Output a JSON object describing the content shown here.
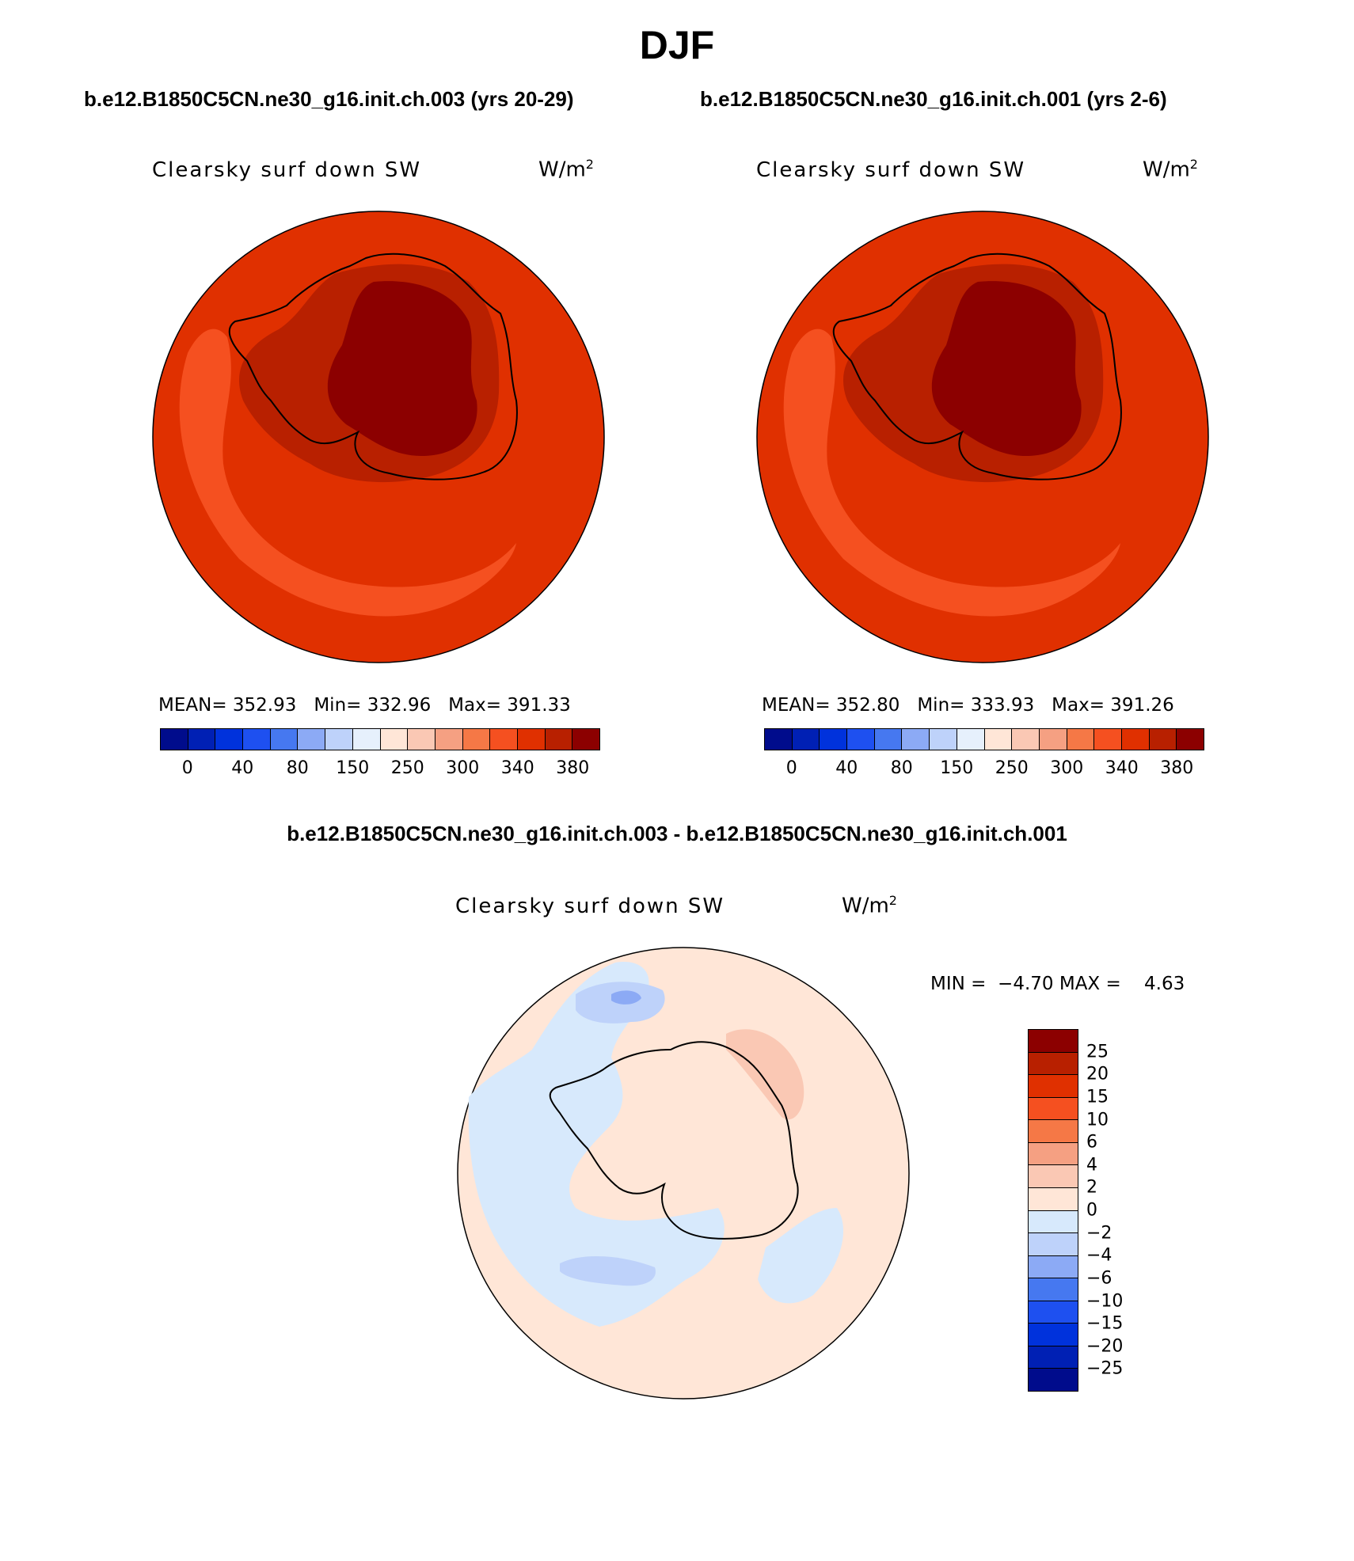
{
  "main_title": "DJF",
  "case_left_title": "b.e12.B1850C5CN.ne30_g16.init.ch.003 (yrs 20-29)",
  "case_right_title": "b.e12.B1850C5CN.ne30_g16.init.ch.001 (yrs 2-6)",
  "diff_title": "b.e12.B1850C5CN.ne30_g16.init.ch.003 - b.e12.B1850C5CN.ne30_g16.init.ch.001",
  "variable": "Clearsky surf down SW",
  "unit_base": "W/m",
  "unit_exp": "2",
  "panel_left": {
    "mean_label": "MEAN=",
    "mean": "352.93",
    "min_label": "Min=",
    "min": "332.96",
    "max_label": "Max=",
    "max": "391.33"
  },
  "panel_right": {
    "mean_label": "MEAN=",
    "mean": "352.80",
    "min_label": "Min=",
    "min": "333.93",
    "max_label": "Max=",
    "max": "391.26"
  },
  "panel_diff": {
    "min_label": "MIN =",
    "min": "−4.70",
    "max_label": "MAX =",
    "max": "4.63"
  },
  "abs_colorbar": {
    "colors": [
      "#000c8c",
      "#0020b4",
      "#0032dc",
      "#1e50f0",
      "#4678f0",
      "#8caaf5",
      "#bed2fa",
      "#e6f0fc",
      "#ffe6d7",
      "#fac8b4",
      "#f5a082",
      "#f57846",
      "#f55020",
      "#e03000",
      "#b82000",
      "#8c0000"
    ],
    "tick_labels": [
      "0",
      "40",
      "80",
      "150",
      "250",
      "300",
      "340",
      "380"
    ]
  },
  "diff_colorbar": {
    "colors": [
      "#8c0000",
      "#b82000",
      "#e03000",
      "#f55020",
      "#f57846",
      "#f5a082",
      "#fac8b4",
      "#ffe6d7",
      "#d7e9fc",
      "#bed2fa",
      "#8caaf5",
      "#4678f0",
      "#1e50f0",
      "#0032dc",
      "#0020b4",
      "#000c8c"
    ],
    "tick_labels": [
      "25",
      "20",
      "15",
      "10",
      "6",
      "4",
      "2",
      "0",
      "−2",
      "−4",
      "−6",
      "−10",
      "−15",
      "−20",
      "−25"
    ]
  },
  "map_colors": {
    "ocean": "#e03000",
    "ocean_high": "#f55020",
    "coast_band": "#b82000",
    "plateau": "#8c0000",
    "diff_positive": "#ffe6d7",
    "diff_negative": "#d7e9fc",
    "diff_neg_strong": "#bed2fa",
    "diff_neg_core": "#8caaf5",
    "diff_pos_strong": "#fac8b4"
  }
}
